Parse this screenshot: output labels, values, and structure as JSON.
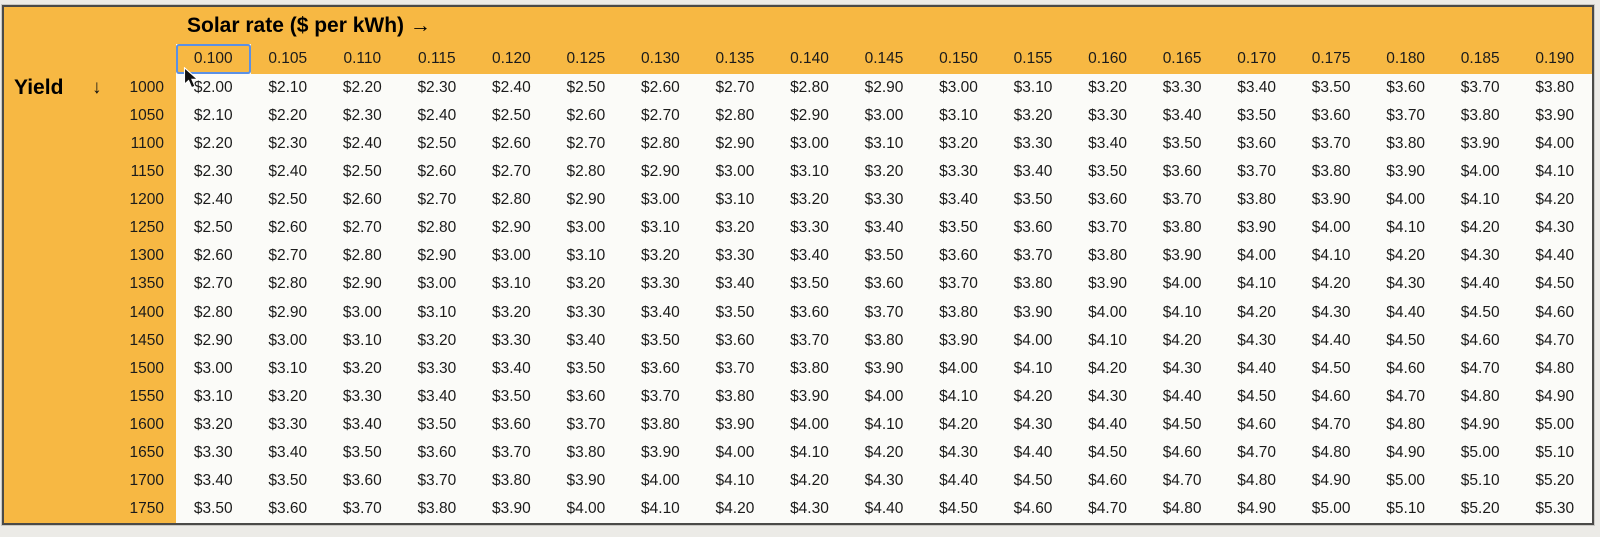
{
  "table": {
    "title": "Solar rate ($ per kWh) →",
    "yield_label": "Yield",
    "yield_arrow": "↓",
    "selected_rate": "0.100",
    "rates": [
      "0.100",
      "0.105",
      "0.110",
      "0.115",
      "0.120",
      "0.125",
      "0.130",
      "0.135",
      "0.140",
      "0.145",
      "0.150",
      "0.155",
      "0.160",
      "0.165",
      "0.170",
      "0.175",
      "0.180",
      "0.185",
      "0.190"
    ],
    "yields": [
      "1000",
      "1050",
      "1100",
      "1150",
      "1200",
      "1250",
      "1300",
      "1350",
      "1400",
      "1450",
      "1500",
      "1550",
      "1600",
      "1650",
      "1700",
      "1750"
    ],
    "values": [
      [
        "$2.00",
        "$2.10",
        "$2.20",
        "$2.30",
        "$2.40",
        "$2.50",
        "$2.60",
        "$2.70",
        "$2.80",
        "$2.90",
        "$3.00",
        "$3.10",
        "$3.20",
        "$3.30",
        "$3.40",
        "$3.50",
        "$3.60",
        "$3.70",
        "$3.80"
      ],
      [
        "$2.10",
        "$2.20",
        "$2.30",
        "$2.40",
        "$2.50",
        "$2.60",
        "$2.70",
        "$2.80",
        "$2.90",
        "$3.00",
        "$3.10",
        "$3.20",
        "$3.30",
        "$3.40",
        "$3.50",
        "$3.60",
        "$3.70",
        "$3.80",
        "$3.90"
      ],
      [
        "$2.20",
        "$2.30",
        "$2.40",
        "$2.50",
        "$2.60",
        "$2.70",
        "$2.80",
        "$2.90",
        "$3.00",
        "$3.10",
        "$3.20",
        "$3.30",
        "$3.40",
        "$3.50",
        "$3.60",
        "$3.70",
        "$3.80",
        "$3.90",
        "$4.00"
      ],
      [
        "$2.30",
        "$2.40",
        "$2.50",
        "$2.60",
        "$2.70",
        "$2.80",
        "$2.90",
        "$3.00",
        "$3.10",
        "$3.20",
        "$3.30",
        "$3.40",
        "$3.50",
        "$3.60",
        "$3.70",
        "$3.80",
        "$3.90",
        "$4.00",
        "$4.10"
      ],
      [
        "$2.40",
        "$2.50",
        "$2.60",
        "$2.70",
        "$2.80",
        "$2.90",
        "$3.00",
        "$3.10",
        "$3.20",
        "$3.30",
        "$3.40",
        "$3.50",
        "$3.60",
        "$3.70",
        "$3.80",
        "$3.90",
        "$4.00",
        "$4.10",
        "$4.20"
      ],
      [
        "$2.50",
        "$2.60",
        "$2.70",
        "$2.80",
        "$2.90",
        "$3.00",
        "$3.10",
        "$3.20",
        "$3.30",
        "$3.40",
        "$3.50",
        "$3.60",
        "$3.70",
        "$3.80",
        "$3.90",
        "$4.00",
        "$4.10",
        "$4.20",
        "$4.30"
      ],
      [
        "$2.60",
        "$2.70",
        "$2.80",
        "$2.90",
        "$3.00",
        "$3.10",
        "$3.20",
        "$3.30",
        "$3.40",
        "$3.50",
        "$3.60",
        "$3.70",
        "$3.80",
        "$3.90",
        "$4.00",
        "$4.10",
        "$4.20",
        "$4.30",
        "$4.40"
      ],
      [
        "$2.70",
        "$2.80",
        "$2.90",
        "$3.00",
        "$3.10",
        "$3.20",
        "$3.30",
        "$3.40",
        "$3.50",
        "$3.60",
        "$3.70",
        "$3.80",
        "$3.90",
        "$4.00",
        "$4.10",
        "$4.20",
        "$4.30",
        "$4.40",
        "$4.50"
      ],
      [
        "$2.80",
        "$2.90",
        "$3.00",
        "$3.10",
        "$3.20",
        "$3.30",
        "$3.40",
        "$3.50",
        "$3.60",
        "$3.70",
        "$3.80",
        "$3.90",
        "$4.00",
        "$4.10",
        "$4.20",
        "$4.30",
        "$4.40",
        "$4.50",
        "$4.60"
      ],
      [
        "$2.90",
        "$3.00",
        "$3.10",
        "$3.20",
        "$3.30",
        "$3.40",
        "$3.50",
        "$3.60",
        "$3.70",
        "$3.80",
        "$3.90",
        "$4.00",
        "$4.10",
        "$4.20",
        "$4.30",
        "$4.40",
        "$4.50",
        "$4.60",
        "$4.70"
      ],
      [
        "$3.00",
        "$3.10",
        "$3.20",
        "$3.30",
        "$3.40",
        "$3.50",
        "$3.60",
        "$3.70",
        "$3.80",
        "$3.90",
        "$4.00",
        "$4.10",
        "$4.20",
        "$4.30",
        "$4.40",
        "$4.50",
        "$4.60",
        "$4.70",
        "$4.80"
      ],
      [
        "$3.10",
        "$3.20",
        "$3.30",
        "$3.40",
        "$3.50",
        "$3.60",
        "$3.70",
        "$3.80",
        "$3.90",
        "$4.00",
        "$4.10",
        "$4.20",
        "$4.30",
        "$4.40",
        "$4.50",
        "$4.60",
        "$4.70",
        "$4.80",
        "$4.90"
      ],
      [
        "$3.20",
        "$3.30",
        "$3.40",
        "$3.50",
        "$3.60",
        "$3.70",
        "$3.80",
        "$3.90",
        "$4.00",
        "$4.10",
        "$4.20",
        "$4.30",
        "$4.40",
        "$4.50",
        "$4.60",
        "$4.70",
        "$4.80",
        "$4.90",
        "$5.00"
      ],
      [
        "$3.30",
        "$3.40",
        "$3.50",
        "$3.60",
        "$3.70",
        "$3.80",
        "$3.90",
        "$4.00",
        "$4.10",
        "$4.20",
        "$4.30",
        "$4.40",
        "$4.50",
        "$4.60",
        "$4.70",
        "$4.80",
        "$4.90",
        "$5.00",
        "$5.10"
      ],
      [
        "$3.40",
        "$3.50",
        "$3.60",
        "$3.70",
        "$3.80",
        "$3.90",
        "$4.00",
        "$4.10",
        "$4.20",
        "$4.30",
        "$4.40",
        "$4.50",
        "$4.60",
        "$4.70",
        "$4.80",
        "$4.90",
        "$5.00",
        "$5.10",
        "$5.20"
      ],
      [
        "$3.50",
        "$3.60",
        "$3.70",
        "$3.80",
        "$3.90",
        "$4.00",
        "$4.10",
        "$4.20",
        "$4.30",
        "$4.40",
        "$4.50",
        "$4.60",
        "$4.70",
        "$4.80",
        "$4.90",
        "$5.00",
        "$5.10",
        "$5.20",
        "$5.30"
      ]
    ],
    "colors": {
      "header_bg": "#F7B843",
      "cell_bg": "#FBFBF8",
      "page_bg": "#ECEBE7",
      "table_border": "#4A4A48",
      "selection_border": "#5B90E5",
      "text": "#1B1B1B"
    }
  },
  "cursor": {
    "visible": true
  }
}
